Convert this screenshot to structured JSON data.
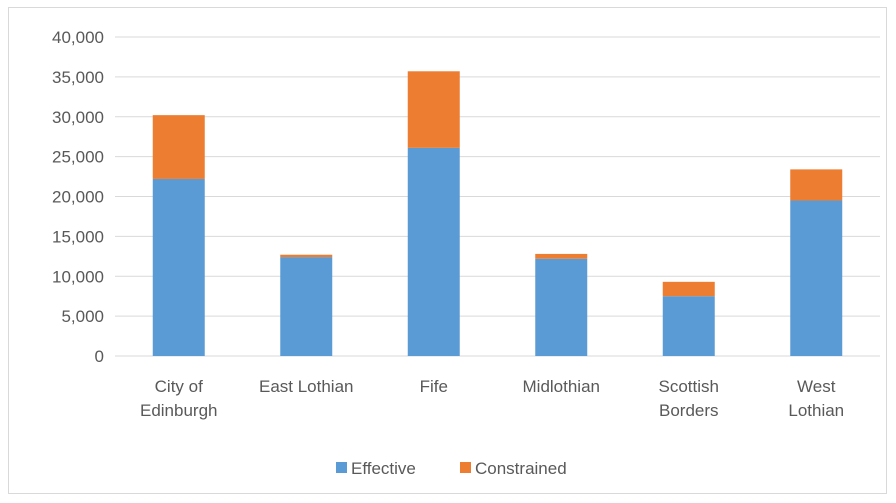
{
  "chart_data": {
    "type": "bar",
    "stacked": true,
    "categories": [
      [
        "City of",
        "Edinburgh"
      ],
      [
        "East Lothian"
      ],
      [
        "Fife"
      ],
      [
        "Midlothian"
      ],
      [
        "Scottish",
        "Borders"
      ],
      [
        "West",
        "Lothian"
      ]
    ],
    "series": [
      {
        "name": "Effective",
        "color": "#5b9bd5",
        "values": [
          22200,
          12400,
          26100,
          12200,
          7500,
          19500
        ]
      },
      {
        "name": "Constrained",
        "color": "#ed7d31",
        "values": [
          8000,
          300,
          9600,
          600,
          1800,
          3900
        ]
      }
    ],
    "ylim": [
      0,
      40000
    ],
    "yticks": [
      "0",
      "5,000",
      "10,000",
      "15,000",
      "20,000",
      "25,000",
      "30,000",
      "35,000",
      "40,000"
    ],
    "ytick_values": [
      0,
      5000,
      10000,
      15000,
      20000,
      25000,
      30000,
      35000,
      40000
    ],
    "grid": true,
    "legend_position": "bottom",
    "gridline_color": "#d9d9d9"
  }
}
